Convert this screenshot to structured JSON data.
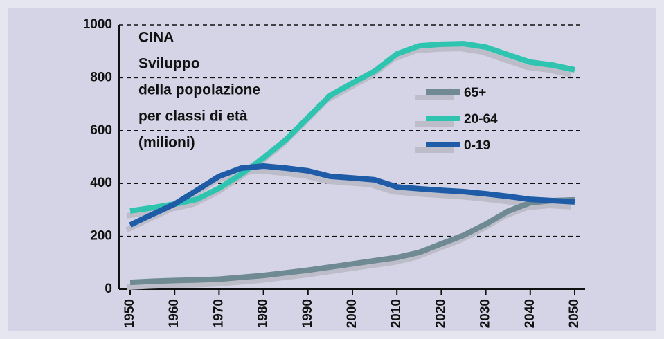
{
  "chart_data": {
    "type": "line",
    "title": [
      "CINA",
      "Sviluppo",
      "della popolazione",
      "per classi di età",
      "(milioni)"
    ],
    "x": [
      1950,
      1955,
      1960,
      1965,
      1970,
      1975,
      1980,
      1985,
      1990,
      1995,
      2000,
      2005,
      2010,
      2015,
      2020,
      2025,
      2030,
      2035,
      2040,
      2045,
      2050
    ],
    "series": [
      {
        "name": "65+",
        "color": "#6f8a93",
        "values": [
          26,
          30,
          33,
          35,
          38,
          45,
          52,
          62,
          72,
          84,
          96,
          108,
          120,
          139,
          172,
          204,
          246,
          295,
          327,
          335,
          338
        ]
      },
      {
        "name": "20-64",
        "color": "#2ec4b0",
        "values": [
          296,
          308,
          322,
          340,
          382,
          435,
          497,
          565,
          649,
          733,
          780,
          825,
          890,
          921,
          927,
          929,
          916,
          887,
          859,
          848,
          830
        ]
      },
      {
        "name": "0-19",
        "color": "#1f5ca8",
        "values": [
          243,
          283,
          322,
          374,
          427,
          458,
          466,
          458,
          448,
          427,
          421,
          414,
          387,
          380,
          374,
          369,
          361,
          351,
          340,
          335,
          330
        ]
      }
    ],
    "xlim": [
      1950,
      2050
    ],
    "xticks": [
      1950,
      1960,
      1970,
      1980,
      1990,
      2000,
      2010,
      2020,
      2030,
      2040,
      2050
    ],
    "ylim": [
      0,
      1000
    ],
    "yticks": [
      0,
      200,
      400,
      600,
      800,
      1000
    ],
    "grid": true,
    "shadow_color": "#bdbdc9"
  }
}
